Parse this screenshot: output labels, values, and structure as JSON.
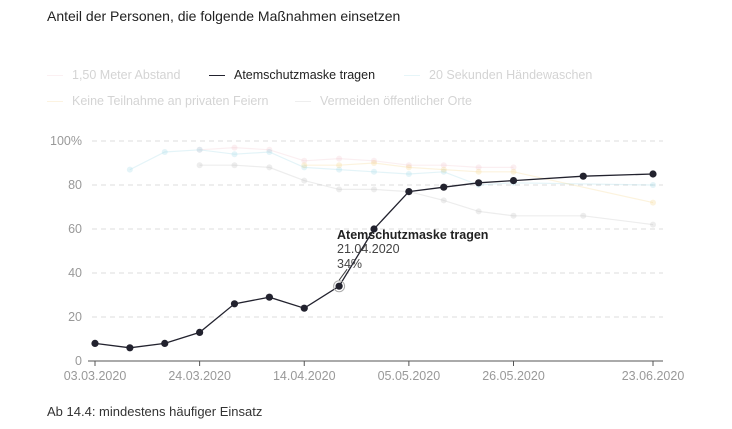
{
  "title": "Anteil der Personen, die folgende Maßnahmen einsetzen",
  "footer": "Ab 14.4: mindestens häufiger Einsatz",
  "tooltip": {
    "series": "Atemschutzmaske tragen",
    "date": "21.04.2020",
    "value": "34%"
  },
  "colors": {
    "highlight": "#22222e",
    "grid": "#dcdcdc",
    "axis": "#555555"
  },
  "legend": [
    {
      "label": "1,50 Meter Abstand",
      "color": "#f2c4cc",
      "active": false
    },
    {
      "label": "Atemschutzmaske tragen",
      "color": "#22222e",
      "active": true
    },
    {
      "label": "20 Sekunden Händewaschen",
      "color": "#9fd9e6",
      "active": false
    },
    {
      "label": "Keine Teilnahme an privaten Feiern",
      "color": "#f5d38a",
      "active": false
    },
    {
      "label": "Vermeiden öffentlicher Orte",
      "color": "#bdbdbd",
      "active": false
    }
  ],
  "chart_data": {
    "type": "line",
    "x": [
      "03.03.2020",
      "10.03.2020",
      "17.03.2020",
      "24.03.2020",
      "31.03.2020",
      "07.04.2020",
      "14.04.2020",
      "21.04.2020",
      "28.04.2020",
      "05.05.2020",
      "12.05.2020",
      "19.05.2020",
      "26.05.2020",
      "09.06.2020",
      "23.06.2020"
    ],
    "x_tick_labels": [
      "03.03.2020",
      "24.03.2020",
      "14.04.2020",
      "05.05.2020",
      "26.05.2020",
      "23.06.2020"
    ],
    "y_ticks": [
      "0",
      "20",
      "40",
      "60",
      "80",
      "100%"
    ],
    "ylim": [
      0,
      100
    ],
    "grid": true,
    "legend_position": "top-left",
    "series": [
      {
        "name": "1,50 Meter Abstand",
        "color": "#f2c4cc",
        "values": [
          null,
          null,
          null,
          96,
          97,
          96,
          91,
          92,
          91,
          89,
          89,
          88,
          88,
          null,
          null
        ]
      },
      {
        "name": "Atemschutzmaske tragen",
        "color": "#22222e",
        "values": [
          8,
          6,
          8,
          13,
          26,
          29,
          24,
          34,
          60,
          77,
          79,
          81,
          82,
          84,
          85
        ]
      },
      {
        "name": "20 Sekunden Händewaschen",
        "color": "#9fd9e6",
        "values": [
          null,
          87,
          95,
          96,
          94,
          95,
          88,
          87,
          86,
          85,
          86,
          80,
          81,
          null,
          80
        ]
      },
      {
        "name": "Keine Teilnahme an privaten Feiern",
        "color": "#f5d38a",
        "values": [
          null,
          null,
          null,
          null,
          null,
          null,
          89,
          89,
          90,
          88,
          87,
          86,
          86,
          null,
          72
        ]
      },
      {
        "name": "Vermeiden öffentlicher Orte",
        "color": "#bdbdbd",
        "values": [
          null,
          null,
          null,
          89,
          89,
          88,
          82,
          78,
          78,
          77,
          73,
          68,
          66,
          66,
          62
        ]
      }
    ],
    "highlighted_series": "Atemschutzmaske tragen",
    "highlighted_point": {
      "x": "21.04.2020",
      "y": 34
    }
  }
}
